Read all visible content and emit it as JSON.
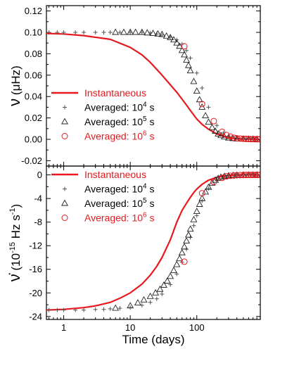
{
  "figure": {
    "xlabel": "Time (days)",
    "colors": {
      "instantaneous": "#e8191e",
      "averaged_1e4": "#555555",
      "averaged_1e5": "#222222",
      "averaged_1e6": "#e8191e",
      "axis": "#000000"
    }
  },
  "chart_data": [
    {
      "type": "scatter",
      "panel": "top",
      "ylabel_symbol": "ν",
      "ylabel_unit": "μHz",
      "xscale": "log",
      "xlim": [
        0.55,
        900
      ],
      "ylim": [
        -0.025,
        0.125
      ],
      "x_ticks": [
        1,
        10,
        100
      ],
      "x_tick_labels": [
        "1",
        "10",
        "100"
      ],
      "y_ticks": [
        -0.02,
        0.0,
        0.02,
        0.04,
        0.06,
        0.08,
        0.1,
        0.12
      ],
      "y_tick_labels": [
        "-0.02",
        "0.00",
        "0.02",
        "0.04",
        "0.06",
        "0.08",
        "0.10",
        "0.12"
      ],
      "legend_position": "lower-left",
      "series": [
        {
          "key": "instantaneous",
          "name": "Instantaneous",
          "marker": "line",
          "x": [
            0.55,
            1,
            2,
            5,
            10,
            15,
            20,
            30,
            40,
            50,
            60,
            70,
            80,
            100,
            120,
            150,
            200,
            250,
            300,
            400,
            600,
            900
          ],
          "y": [
            0.099,
            0.0985,
            0.097,
            0.0935,
            0.086,
            0.079,
            0.072,
            0.06,
            0.051,
            0.044,
            0.0375,
            0.032,
            0.027,
            0.019,
            0.014,
            0.0095,
            0.005,
            0.003,
            0.0015,
            0.0005,
            0.0001,
            0.0
          ]
        },
        {
          "key": "averaged_1e4",
          "name_prefix": "Averaged: 10",
          "name_exponent": "4",
          "name_suffix": " s",
          "marker": "plus",
          "x": [
            0.6,
            0.8,
            1,
            1.5,
            2,
            3,
            4,
            5,
            7,
            10,
            15,
            20,
            25,
            30,
            40,
            50,
            60,
            70,
            80,
            100,
            120,
            150,
            200,
            250,
            300,
            400,
            500,
            600,
            700,
            800
          ],
          "y": [
            0.1,
            0.1,
            0.1,
            0.1,
            0.1,
            0.1,
            0.1,
            0.1,
            0.1,
            0.1,
            0.1,
            0.0995,
            0.0985,
            0.0975,
            0.0955,
            0.093,
            0.089,
            0.083,
            0.076,
            0.062,
            0.048,
            0.03,
            0.013,
            0.006,
            0.003,
            0.0012,
            0.0006,
            0.0004,
            0.0003,
            0.0002
          ]
        },
        {
          "key": "averaged_1e5",
          "name_prefix": "Averaged: 10",
          "name_exponent": "5",
          "name_suffix": " s",
          "marker": "triangle",
          "x": [
            6,
            8,
            10,
            12,
            15,
            18,
            22,
            26,
            30,
            35,
            40,
            45,
            50,
            55,
            60,
            65,
            70,
            75,
            80,
            90,
            100,
            110,
            120,
            135,
            150,
            170,
            190,
            210,
            230,
            260,
            300,
            350,
            400,
            500,
            600,
            700,
            800
          ],
          "y": [
            0.1,
            0.1,
            0.1,
            0.1,
            0.1,
            0.0995,
            0.099,
            0.0985,
            0.098,
            0.0965,
            0.095,
            0.093,
            0.09,
            0.087,
            0.083,
            0.079,
            0.074,
            0.069,
            0.064,
            0.054,
            0.045,
            0.037,
            0.03,
            0.022,
            0.016,
            0.011,
            0.0075,
            0.005,
            0.0035,
            0.0022,
            0.0012,
            0.0007,
            0.0004,
            0.0002,
            0.0001,
            0.0001,
            0.0
          ]
        },
        {
          "key": "averaged_1e6",
          "name_prefix": "Averaged: 10",
          "name_exponent": "6",
          "name_suffix": " s",
          "marker": "circle",
          "x": [
            65,
            120,
            180,
            240,
            280,
            320,
            360,
            400,
            450,
            500,
            550,
            600,
            650,
            700,
            760,
            820,
            880
          ],
          "y": [
            0.087,
            0.033,
            0.017,
            0.007,
            0.004,
            0.0025,
            0.0015,
            0.001,
            0.0007,
            0.0005,
            0.0004,
            0.0003,
            0.0002,
            0.0002,
            0.0001,
            0.0001,
            0.0001
          ]
        }
      ]
    },
    {
      "type": "scatter",
      "panel": "bottom",
      "ylabel_symbol": "ν̇",
      "ylabel_unit_base": "10",
      "ylabel_unit_exp": "-15",
      "ylabel_unit_rest": " Hz s",
      "ylabel_unit_rest_exp": "-1",
      "xscale": "log",
      "xlim": [
        0.55,
        900
      ],
      "ylim": [
        -24.5,
        1.5
      ],
      "x_ticks": [
        1,
        10,
        100
      ],
      "x_tick_labels": [
        "1",
        "10",
        "100"
      ],
      "y_ticks": [
        -24,
        -20,
        -16,
        -12,
        -8,
        -4,
        0
      ],
      "y_tick_labels": [
        "-24",
        "-20",
        "-16",
        "-12",
        "-8",
        "-4",
        "0"
      ],
      "legend_position": "upper-left",
      "series": [
        {
          "key": "instantaneous",
          "name": "Instantaneous",
          "marker": "line",
          "x": [
            0.55,
            1,
            2,
            3,
            5,
            7,
            10,
            15,
            20,
            25,
            30,
            40,
            50,
            60,
            70,
            80,
            90,
            100,
            120,
            150,
            200,
            250,
            300,
            400,
            600,
            900
          ],
          "y": [
            -22.9,
            -22.8,
            -22.5,
            -22.2,
            -21.6,
            -20.9,
            -20.0,
            -18.5,
            -17.0,
            -15.5,
            -14.0,
            -11.0,
            -8.0,
            -6.0,
            -4.8,
            -3.8,
            -3.0,
            -2.4,
            -1.6,
            -0.9,
            -0.4,
            -0.2,
            -0.1,
            0.0,
            0.0,
            0.0
          ]
        },
        {
          "key": "averaged_1e4",
          "name_prefix": "Averaged: 10",
          "name_exponent": "4",
          "name_suffix": " s",
          "marker": "plus",
          "x": [
            0.6,
            0.8,
            1,
            1.5,
            2,
            3,
            4,
            5,
            7,
            10,
            15,
            20,
            25,
            30,
            40,
            50,
            60,
            70,
            80,
            90,
            100,
            120,
            150,
            200,
            250,
            300,
            400,
            500,
            600,
            700,
            800
          ],
          "y": [
            -22.9,
            -22.9,
            -22.9,
            -22.9,
            -22.9,
            -22.8,
            -22.8,
            -22.7,
            -22.6,
            -22.5,
            -22.1,
            -21.6,
            -21.0,
            -20.2,
            -18.6,
            -16.8,
            -14.8,
            -12.6,
            -10.6,
            -8.6,
            -6.9,
            -4.4,
            -2.3,
            -0.8,
            -0.3,
            -0.15,
            -0.05,
            0.0,
            0.0,
            0.0,
            0.0
          ]
        },
        {
          "key": "averaged_1e5",
          "name_prefix": "Averaged: 10",
          "name_exponent": "5",
          "name_suffix": " s",
          "marker": "triangle",
          "x": [
            6,
            10,
            13,
            16,
            20,
            24,
            28,
            32,
            36,
            40,
            45,
            50,
            55,
            60,
            65,
            70,
            75,
            80,
            90,
            100,
            110,
            120,
            135,
            150,
            170,
            190,
            210,
            230,
            260,
            300,
            350,
            400,
            500,
            600,
            700,
            800
          ],
          "y": [
            -22.6,
            -22.2,
            -21.7,
            -21.2,
            -20.6,
            -20.0,
            -19.4,
            -18.7,
            -18.0,
            -17.2,
            -16.2,
            -15.2,
            -14.2,
            -13.2,
            -12.2,
            -11.2,
            -10.2,
            -9.2,
            -7.6,
            -6.2,
            -5.0,
            -4.0,
            -2.9,
            -2.1,
            -1.4,
            -0.9,
            -0.6,
            -0.4,
            -0.25,
            -0.15,
            -0.08,
            -0.05,
            -0.02,
            0.0,
            0.0,
            0.0
          ]
        },
        {
          "key": "averaged_1e6",
          "name_prefix": "Averaged: 10",
          "name_exponent": "6",
          "name_suffix": " s",
          "marker": "circle",
          "x": [
            65,
            120,
            180,
            240,
            280,
            320,
            360,
            400,
            450,
            500,
            550,
            600,
            650,
            700,
            760,
            820,
            880
          ],
          "y": [
            -14.7,
            -3.1,
            -1.2,
            -0.5,
            -0.25,
            -0.15,
            -0.1,
            -0.05,
            -0.03,
            -0.02,
            0.0,
            0.0,
            0.0,
            0.0,
            0.0,
            0.0,
            0.0
          ]
        }
      ]
    }
  ]
}
